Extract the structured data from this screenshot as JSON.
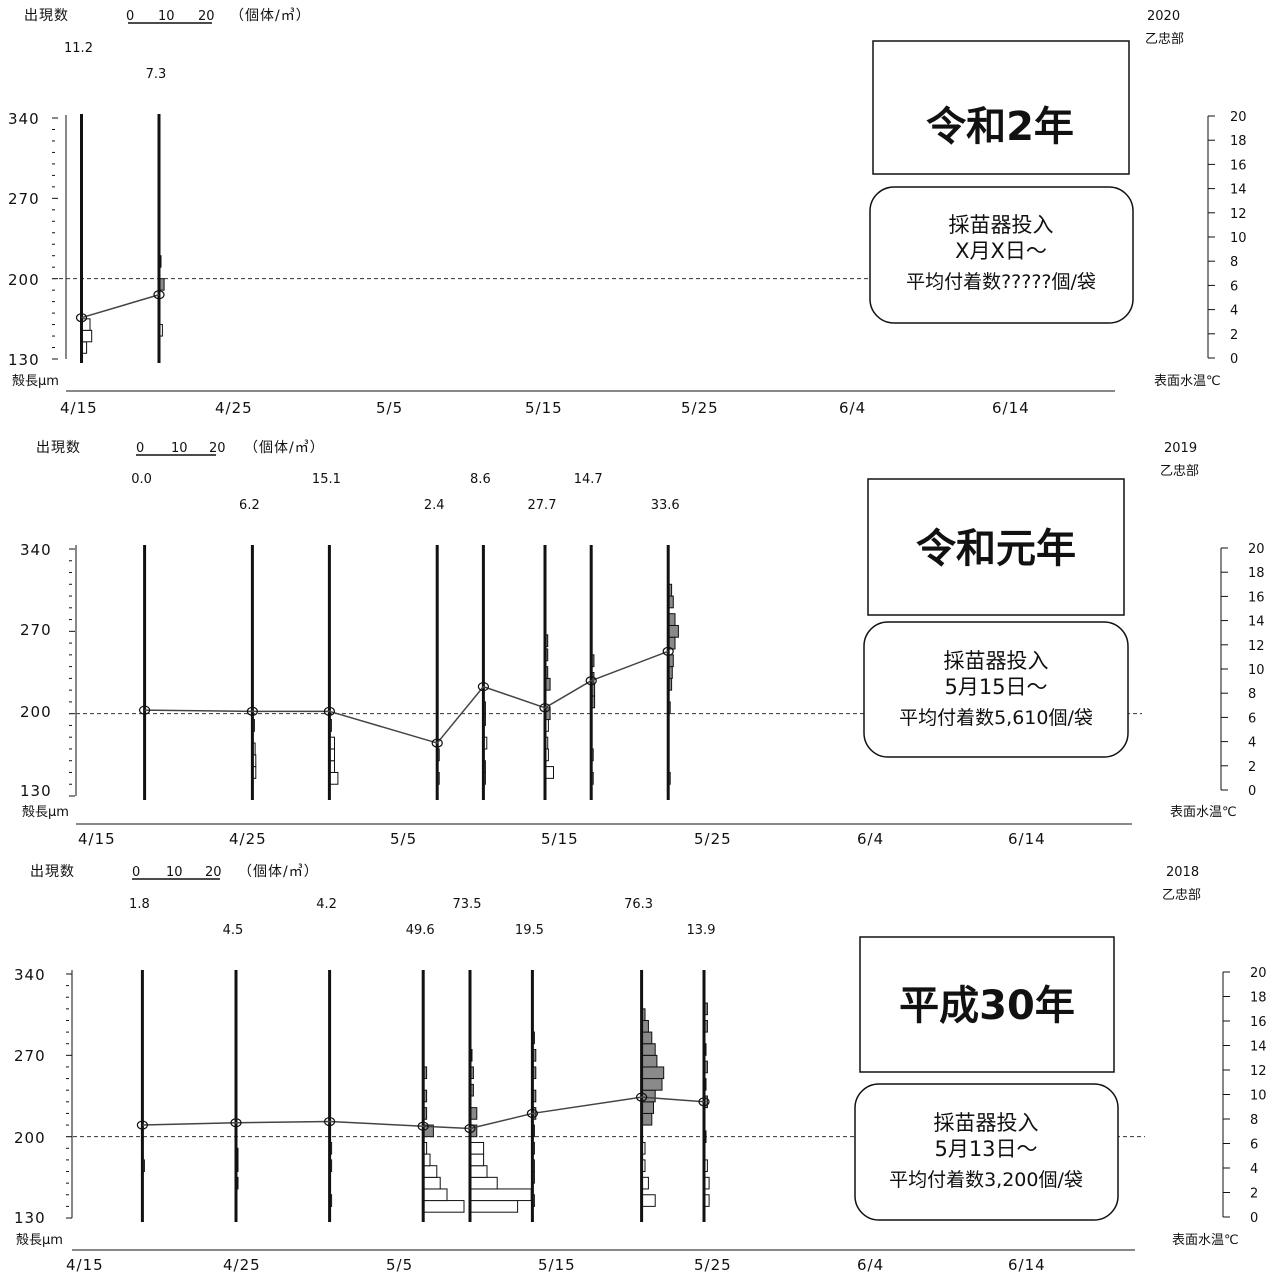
{
  "shared": {
    "count_label": "出現数",
    "scale_ticks": [
      "0",
      "10",
      "20"
    ],
    "unit_label": "（個体/㎥）",
    "length_label": "殻長μm",
    "temp_label": "表面水温℃",
    "y_ticks": [
      "340",
      "270",
      "200",
      "130"
    ],
    "temp_ticks": [
      "20",
      "18",
      "16",
      "14",
      "12",
      "10",
      "8",
      "6",
      "4",
      "2",
      "0"
    ],
    "x_ticks": [
      "4/15",
      "4/25",
      "5/5",
      "5/15",
      "5/25",
      "6/4",
      "6/14"
    ]
  },
  "panels": [
    {
      "year": "2020",
      "site": "乙忠部",
      "era_title": "令和2年",
      "note_line1": "採苗器投入",
      "note_line2": "X月X日～",
      "note_line3": "平均付着数?????個/袋"
    },
    {
      "year": "2019",
      "site": "乙忠部",
      "era_title": "令和元年",
      "note_line1": "採苗器投入",
      "note_line2": "5月15日～",
      "note_line3": "平均付着数5,610個/袋"
    },
    {
      "year": "2018",
      "site": "乙忠部",
      "era_title": "平成30年",
      "note_line1": "採苗器投入",
      "note_line2": "5月13日～",
      "note_line3": "平均付着数3,200個/袋"
    }
  ],
  "chart_data": [
    {
      "type": "bar",
      "year": "2020",
      "xlabel": "",
      "ylabel": "殻長μm",
      "y2label": "表面水温℃",
      "ylim": [
        130,
        340
      ],
      "y2lim": [
        0,
        20
      ],
      "xlim": [
        "4/15",
        "6/14"
      ],
      "threshold_length": 200,
      "samples": [
        {
          "date": "4/16",
          "count": "11.2",
          "mean_length": 166,
          "hist": [
            {
              "len": 140,
              "w": 1.5,
              "fill": "white"
            },
            {
              "len": 150,
              "w": 3.0,
              "fill": "white"
            },
            {
              "len": 160,
              "w": 2.5,
              "fill": "white"
            }
          ]
        },
        {
          "date": "4/21",
          "count": "7.3",
          "mean_length": 186,
          "hist": [
            {
              "len": 155,
              "w": 1.0,
              "fill": "white"
            },
            {
              "len": 195,
              "w": 1.5,
              "fill": "gray"
            },
            {
              "len": 215,
              "w": 0.5,
              "fill": "white"
            }
          ]
        }
      ]
    },
    {
      "type": "bar",
      "year": "2019",
      "xlabel": "",
      "ylabel": "殻長μm",
      "y2label": "表面水温℃",
      "ylim": [
        130,
        340
      ],
      "y2lim": [
        0,
        20
      ],
      "xlim": [
        "4/15",
        "6/14"
      ],
      "threshold_length": 200,
      "samples": [
        {
          "date": "4/19",
          "count": "0.0",
          "mean_length": 203,
          "hist": []
        },
        {
          "date": "4/26",
          "count": "6.2",
          "mean_length": 202,
          "hist": [
            {
              "len": 150,
              "w": 1.0,
              "fill": "white"
            },
            {
              "len": 160,
              "w": 1.0,
              "fill": "white"
            },
            {
              "len": 170,
              "w": 0.8,
              "fill": "white"
            },
            {
              "len": 190,
              "w": 0.5,
              "fill": "white"
            }
          ]
        },
        {
          "date": "5/1",
          "count": "15.1",
          "mean_length": 202,
          "hist": [
            {
              "len": 145,
              "w": 2.5,
              "fill": "white"
            },
            {
              "len": 155,
              "w": 1.5,
              "fill": "white"
            },
            {
              "len": 165,
              "w": 1.5,
              "fill": "white"
            },
            {
              "len": 175,
              "w": 1.5,
              "fill": "white"
            },
            {
              "len": 190,
              "w": 0.5,
              "fill": "white"
            }
          ]
        },
        {
          "date": "5/8",
          "count": "2.4",
          "mean_length": 175,
          "hist": [
            {
              "len": 145,
              "w": 0.5,
              "fill": "white"
            },
            {
              "len": 165,
              "w": 0.5,
              "fill": "white"
            }
          ]
        },
        {
          "date": "5/11",
          "count": "8.6",
          "mean_length": 223,
          "hist": [
            {
              "len": 145,
              "w": 0.5,
              "fill": "white"
            },
            {
              "len": 155,
              "w": 0.5,
              "fill": "white"
            },
            {
              "len": 175,
              "w": 1.0,
              "fill": "white"
            },
            {
              "len": 195,
              "w": 0.5,
              "fill": "white"
            },
            {
              "len": 205,
              "w": 0.5,
              "fill": "white"
            }
          ]
        },
        {
          "date": "5/15",
          "count": "27.7",
          "mean_length": 205,
          "hist": [
            {
              "len": 150,
              "w": 2.5,
              "fill": "white"
            },
            {
              "len": 165,
              "w": 1.0,
              "fill": "white"
            },
            {
              "len": 175,
              "w": 0.8,
              "fill": "white"
            },
            {
              "len": 190,
              "w": 1.0,
              "fill": "white"
            },
            {
              "len": 200,
              "w": 1.5,
              "fill": "gray"
            },
            {
              "len": 225,
              "w": 1.5,
              "fill": "gray"
            },
            {
              "len": 235,
              "w": 0.8,
              "fill": "gray"
            },
            {
              "len": 250,
              "w": 0.8,
              "fill": "gray"
            },
            {
              "len": 262,
              "w": 0.8,
              "fill": "gray"
            }
          ]
        },
        {
          "date": "5/18",
          "count": "14.7",
          "mean_length": 228,
          "hist": [
            {
              "len": 145,
              "w": 0.5,
              "fill": "white"
            },
            {
              "len": 165,
              "w": 0.3,
              "fill": "white"
            },
            {
              "len": 210,
              "w": 1.0,
              "fill": "gray"
            },
            {
              "len": 220,
              "w": 1.0,
              "fill": "gray"
            },
            {
              "len": 230,
              "w": 0.8,
              "fill": "gray"
            },
            {
              "len": 245,
              "w": 0.8,
              "fill": "gray"
            }
          ]
        },
        {
          "date": "5/23",
          "count": "33.6",
          "mean_length": 253,
          "hist": [
            {
              "len": 145,
              "w": 0.3,
              "fill": "white"
            },
            {
              "len": 205,
              "w": 0.4,
              "fill": "white"
            },
            {
              "len": 225,
              "w": 1.0,
              "fill": "gray"
            },
            {
              "len": 235,
              "w": 1.2,
              "fill": "gray"
            },
            {
              "len": 245,
              "w": 1.5,
              "fill": "gray"
            },
            {
              "len": 260,
              "w": 2.0,
              "fill": "gray"
            },
            {
              "len": 270,
              "w": 3.0,
              "fill": "gray"
            },
            {
              "len": 280,
              "w": 2.0,
              "fill": "gray"
            },
            {
              "len": 295,
              "w": 1.5,
              "fill": "gray"
            },
            {
              "len": 305,
              "w": 1.0,
              "fill": "gray"
            }
          ]
        }
      ]
    },
    {
      "type": "bar",
      "year": "2018",
      "xlabel": "",
      "ylabel": "殻長μm",
      "y2label": "表面水温℃",
      "ylim": [
        130,
        340
      ],
      "y2lim": [
        0,
        20
      ],
      "xlim": [
        "4/15",
        "6/14"
      ],
      "threshold_length": 200,
      "samples": [
        {
          "date": "4/19",
          "count": "1.8",
          "mean_length": 210,
          "hist": [
            {
              "len": 175,
              "w": 0.3,
              "fill": "white"
            }
          ]
        },
        {
          "date": "4/25",
          "count": "4.5",
          "mean_length": 212,
          "hist": [
            {
              "len": 160,
              "w": 0.5,
              "fill": "white"
            },
            {
              "len": 175,
              "w": 0.5,
              "fill": "white"
            },
            {
              "len": 185,
              "w": 0.5,
              "fill": "white"
            }
          ]
        },
        {
          "date": "5/1",
          "count": "4.2",
          "mean_length": 213,
          "hist": [
            {
              "len": 145,
              "w": 0.3,
              "fill": "white"
            },
            {
              "len": 175,
              "w": 0.5,
              "fill": "white"
            },
            {
              "len": 190,
              "w": 0.5,
              "fill": "white"
            }
          ]
        },
        {
          "date": "5/7",
          "count": "49.6",
          "mean_length": 209,
          "hist": [
            {
              "len": 140,
              "w": 12.0,
              "fill": "white"
            },
            {
              "len": 150,
              "w": 7.0,
              "fill": "white"
            },
            {
              "len": 160,
              "w": 5.0,
              "fill": "white"
            },
            {
              "len": 170,
              "w": 4.0,
              "fill": "white"
            },
            {
              "len": 180,
              "w": 2.0,
              "fill": "white"
            },
            {
              "len": 190,
              "w": 1.0,
              "fill": "white"
            },
            {
              "len": 205,
              "w": 3.0,
              "fill": "gray"
            },
            {
              "len": 220,
              "w": 1.0,
              "fill": "gray"
            },
            {
              "len": 235,
              "w": 1.0,
              "fill": "gray"
            },
            {
              "len": 255,
              "w": 1.0,
              "fill": "gray"
            }
          ]
        },
        {
          "date": "5/10",
          "count": "73.5",
          "mean_length": 207,
          "hist": [
            {
              "len": 140,
              "w": 14.0,
              "fill": "white"
            },
            {
              "len": 150,
              "w": 18.0,
              "fill": "white"
            },
            {
              "len": 160,
              "w": 8.0,
              "fill": "white"
            },
            {
              "len": 170,
              "w": 5.0,
              "fill": "white"
            },
            {
              "len": 180,
              "w": 4.0,
              "fill": "white"
            },
            {
              "len": 190,
              "w": 4.0,
              "fill": "white"
            },
            {
              "len": 205,
              "w": 2.0,
              "fill": "gray"
            },
            {
              "len": 220,
              "w": 2.0,
              "fill": "gray"
            },
            {
              "len": 240,
              "w": 1.0,
              "fill": "gray"
            },
            {
              "len": 255,
              "w": 1.0,
              "fill": "gray"
            },
            {
              "len": 270,
              "w": 0.5,
              "fill": "gray"
            }
          ]
        },
        {
          "date": "5/14",
          "count": "19.5",
          "mean_length": 220,
          "hist": [
            {
              "len": 145,
              "w": 0.5,
              "fill": "white"
            },
            {
              "len": 165,
              "w": 0.5,
              "fill": "white"
            },
            {
              "len": 175,
              "w": 0.5,
              "fill": "white"
            },
            {
              "len": 190,
              "w": 0.5,
              "fill": "white"
            },
            {
              "len": 205,
              "w": 0.5,
              "fill": "gray"
            },
            {
              "len": 220,
              "w": 1.0,
              "fill": "gray"
            },
            {
              "len": 235,
              "w": 1.0,
              "fill": "gray"
            },
            {
              "len": 255,
              "w": 1.0,
              "fill": "gray"
            },
            {
              "len": 270,
              "w": 1.0,
              "fill": "gray"
            },
            {
              "len": 285,
              "w": 0.5,
              "fill": "gray"
            }
          ]
        },
        {
          "date": "5/21",
          "count": "76.3",
          "mean_length": 234,
          "hist": [
            {
              "len": 145,
              "w": 4.0,
              "fill": "white"
            },
            {
              "len": 160,
              "w": 2.0,
              "fill": "white"
            },
            {
              "len": 175,
              "w": 1.0,
              "fill": "white"
            },
            {
              "len": 190,
              "w": 1.0,
              "fill": "white"
            },
            {
              "len": 215,
              "w": 3.0,
              "fill": "gray"
            },
            {
              "len": 225,
              "w": 3.5,
              "fill": "gray"
            },
            {
              "len": 235,
              "w": 4.0,
              "fill": "gray"
            },
            {
              "len": 245,
              "w": 6.0,
              "fill": "gray"
            },
            {
              "len": 255,
              "w": 6.5,
              "fill": "gray"
            },
            {
              "len": 265,
              "w": 4.5,
              "fill": "gray"
            },
            {
              "len": 275,
              "w": 4.0,
              "fill": "gray"
            },
            {
              "len": 285,
              "w": 3.0,
              "fill": "gray"
            },
            {
              "len": 295,
              "w": 2.0,
              "fill": "gray"
            },
            {
              "len": 305,
              "w": 1.0,
              "fill": "gray"
            }
          ]
        },
        {
          "date": "5/25",
          "count": "13.9",
          "mean_length": 230,
          "hist": [
            {
              "len": 145,
              "w": 1.5,
              "fill": "white"
            },
            {
              "len": 160,
              "w": 1.5,
              "fill": "white"
            },
            {
              "len": 175,
              "w": 1.0,
              "fill": "white"
            },
            {
              "len": 200,
              "w": 0.5,
              "fill": "white"
            },
            {
              "len": 230,
              "w": 1.0,
              "fill": "gray"
            },
            {
              "len": 245,
              "w": 0.5,
              "fill": "gray"
            },
            {
              "len": 260,
              "w": 1.0,
              "fill": "gray"
            },
            {
              "len": 275,
              "w": 0.5,
              "fill": "gray"
            },
            {
              "len": 295,
              "w": 1.0,
              "fill": "gray"
            },
            {
              "len": 310,
              "w": 1.0,
              "fill": "gray"
            }
          ]
        }
      ]
    }
  ]
}
